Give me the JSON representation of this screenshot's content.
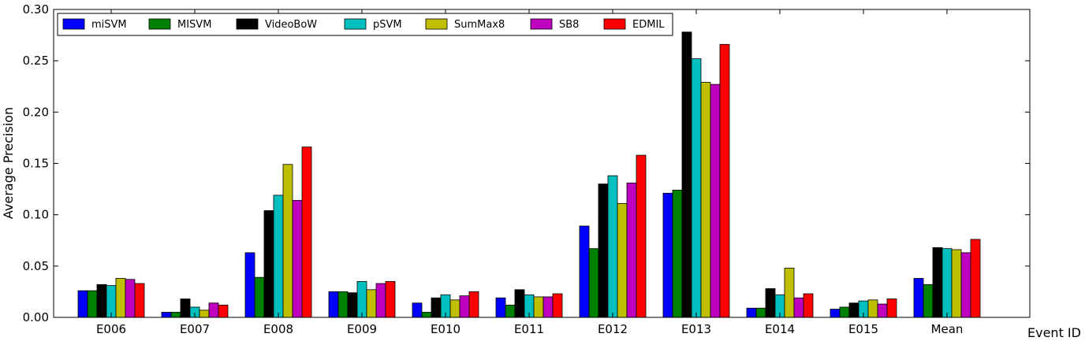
{
  "chart_data": {
    "type": "bar",
    "xlabel": "Event ID",
    "ylabel": "Average Precision",
    "ylim": [
      0,
      0.3
    ],
    "yticks": [
      "0.00",
      "0.05",
      "0.10",
      "0.15",
      "0.20",
      "0.25",
      "0.30"
    ],
    "categories": [
      "E006",
      "E007",
      "E008",
      "E009",
      "E010",
      "E011",
      "E012",
      "E013",
      "E014",
      "E015",
      "Mean"
    ],
    "legend_position": "top-left",
    "grid": false,
    "series": [
      {
        "name": "miSVM",
        "color": "#0000ff",
        "values": [
          0.026,
          0.005,
          0.063,
          0.025,
          0.014,
          0.019,
          0.089,
          0.121,
          0.009,
          0.008,
          0.038
        ]
      },
      {
        "name": "MISVM",
        "color": "#008000",
        "values": [
          0.026,
          0.005,
          0.039,
          0.025,
          0.005,
          0.012,
          0.067,
          0.124,
          0.009,
          0.01,
          0.032
        ]
      },
      {
        "name": "VideoBoW",
        "color": "#000000",
        "values": [
          0.032,
          0.018,
          0.104,
          0.024,
          0.019,
          0.027,
          0.13,
          0.278,
          0.028,
          0.014,
          0.068
        ]
      },
      {
        "name": "pSVM",
        "color": "#00bfbf",
        "values": [
          0.031,
          0.01,
          0.119,
          0.035,
          0.022,
          0.022,
          0.138,
          0.252,
          0.022,
          0.016,
          0.067
        ]
      },
      {
        "name": "SumMax8",
        "color": "#bfbf00",
        "values": [
          0.038,
          0.007,
          0.149,
          0.027,
          0.017,
          0.02,
          0.111,
          0.229,
          0.048,
          0.017,
          0.066
        ]
      },
      {
        "name": "SB8",
        "color": "#bf00bf",
        "values": [
          0.037,
          0.014,
          0.114,
          0.033,
          0.021,
          0.02,
          0.131,
          0.227,
          0.019,
          0.013,
          0.063
        ]
      },
      {
        "name": "EDMIL",
        "color": "#ff0000",
        "values": [
          0.033,
          0.012,
          0.166,
          0.035,
          0.025,
          0.023,
          0.158,
          0.266,
          0.023,
          0.018,
          0.076
        ]
      }
    ]
  }
}
